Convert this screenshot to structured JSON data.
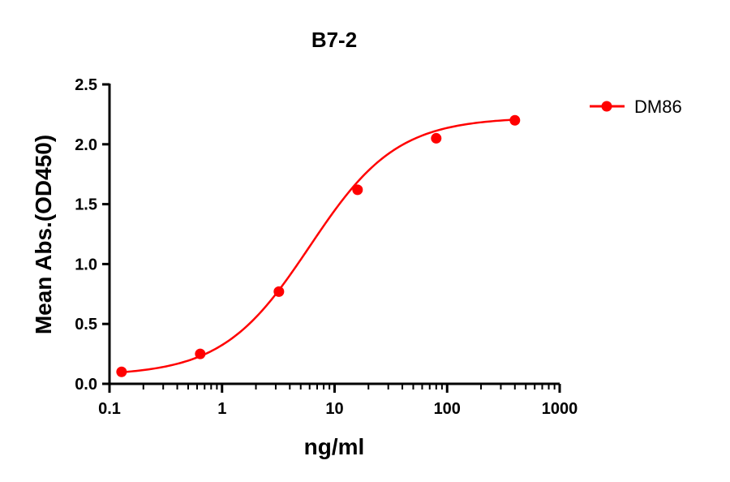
{
  "chart_data": {
    "type": "scatter",
    "title": "B7-2",
    "xlabel": "ng/ml",
    "ylabel": "Mean Abs.(OD450)",
    "xscale": "log",
    "xlim": [
      0.1,
      1000
    ],
    "ylim": [
      0.0,
      2.5
    ],
    "xticks": [
      "0.1",
      "1",
      "10",
      "100",
      "1000"
    ],
    "yticks": [
      "0.0",
      "0.5",
      "1.0",
      "1.5",
      "2.0",
      "2.5"
    ],
    "grid": false,
    "legend_position": "top-right",
    "series": [
      {
        "name": "DM86",
        "color": "#ff0000",
        "marker": "circle",
        "fit": "sigmoidal 4PL curve",
        "x": [
          0.128,
          0.64,
          3.2,
          16,
          80,
          400
        ],
        "y": [
          0.1,
          0.25,
          0.77,
          1.62,
          2.05,
          2.2
        ]
      }
    ]
  }
}
